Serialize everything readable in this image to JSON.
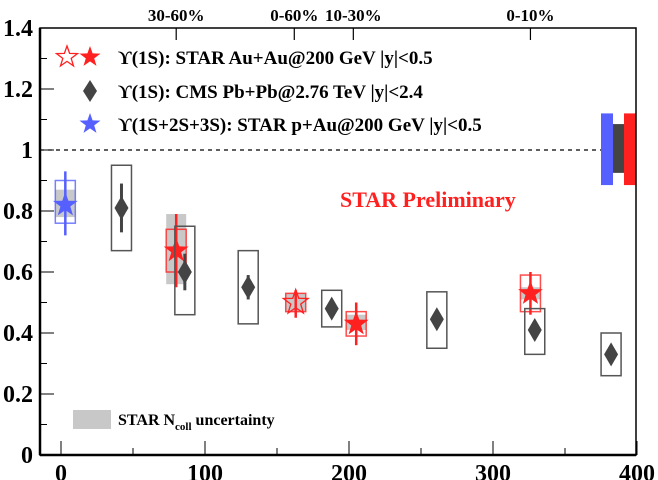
{
  "chart_data": {
    "type": "scatter",
    "title": "",
    "xlabel": "",
    "ylabel": "",
    "xlim": [
      -15,
      400
    ],
    "ylim": [
      0,
      1.4
    ],
    "x_ticks": [
      "0",
      "100",
      "200",
      "300",
      "400"
    ],
    "y_ticks": [
      "0",
      "0.2",
      "0.4",
      "0.6",
      "0.8",
      "1",
      "1.2",
      "1.4"
    ],
    "reference_line": 1,
    "top_axis_labels": [
      {
        "label": "30-60%",
        "x": 80
      },
      {
        "label": "0-60%",
        "x": 162
      },
      {
        "label": "10-30%",
        "x": 203
      },
      {
        "label": "0-10%",
        "x": 326
      }
    ],
    "annotation": "STAR Preliminary",
    "annotation_color": "#ff2020",
    "ncoll_legend": {
      "prefix": "STAR N",
      "sub": "coll",
      "suffix": " uncertainty"
    },
    "legend_placement": "top-left",
    "series": [
      {
        "name": "ϒ(1S): STAR Au+Au@200 GeV  |y|<0.5",
        "color": "#ff2020",
        "marker": "star",
        "points": [
          {
            "x": 80,
            "y": 0.67,
            "stat": [
              0.55,
              0.79
            ],
            "syst": [
              0.6,
              0.74
            ],
            "ncoll": [
              0.56,
              0.79
            ],
            "open": false
          },
          {
            "x": 163,
            "y": 0.5,
            "stat": [
              0.45,
              0.54
            ],
            "syst": [
              0.47,
              0.53
            ],
            "ncoll": [
              0.47,
              0.53
            ],
            "open": true
          },
          {
            "x": 205,
            "y": 0.43,
            "stat": [
              0.36,
              0.5
            ],
            "syst": [
              0.39,
              0.47
            ],
            "ncoll": [
              0.41,
              0.46
            ],
            "open": false
          },
          {
            "x": 326,
            "y": 0.53,
            "stat": [
              0.46,
              0.6
            ],
            "syst": [
              0.47,
              0.59
            ],
            "ncoll": [
              0.51,
              0.55
            ],
            "open": false
          }
        ],
        "global_unc": [
          0.885,
          1.12
        ]
      },
      {
        "name": "ϒ(1S): CMS Pb+Pb@2.76 TeV  |y|<2.4",
        "color": "#444444",
        "marker": "diamond",
        "points": [
          {
            "x": 42,
            "y": 0.81,
            "stat": [
              0.73,
              0.89
            ],
            "syst": [
              0.67,
              0.95
            ]
          },
          {
            "x": 86,
            "y": 0.6,
            "stat": [
              0.54,
              0.66
            ],
            "syst": [
              0.46,
              0.75
            ]
          },
          {
            "x": 130,
            "y": 0.55,
            "stat": [
              0.51,
              0.59
            ],
            "syst": [
              0.43,
              0.67
            ]
          },
          {
            "x": 188,
            "y": 0.48,
            "stat": [
              0.48,
              0.48
            ],
            "syst": [
              0.42,
              0.54
            ]
          },
          {
            "x": 261,
            "y": 0.445,
            "stat": [
              0.445,
              0.445
            ],
            "syst": [
              0.35,
              0.535
            ]
          },
          {
            "x": 329,
            "y": 0.41,
            "stat": [
              0.41,
              0.41
            ],
            "syst": [
              0.33,
              0.48
            ]
          },
          {
            "x": 382,
            "y": 0.33,
            "stat": [
              0.33,
              0.33
            ],
            "syst": [
              0.26,
              0.4
            ]
          }
        ],
        "global_unc": [
          0.925,
          1.085
        ]
      },
      {
        "name": "ϒ(1S+2S+3S): STAR p+Au@200 GeV  |y|<0.5",
        "color": "#5560ff",
        "marker": "star",
        "points": [
          {
            "x": 3,
            "y": 0.82,
            "stat": [
              0.72,
              0.93
            ],
            "syst": [
              0.76,
              0.9
            ],
            "ncoll": [
              0.78,
              0.87
            ],
            "open": false
          }
        ],
        "global_unc": [
          0.885,
          1.12
        ]
      }
    ]
  }
}
